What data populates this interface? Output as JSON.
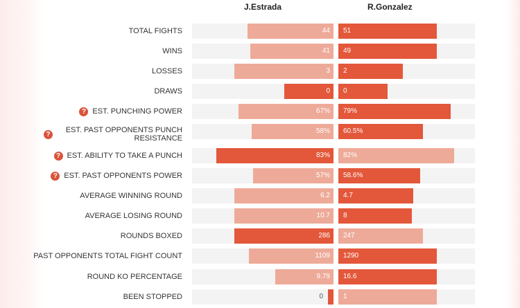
{
  "fighters": {
    "left": "J.Estrada",
    "right": "R.Gonzalez"
  },
  "colors": {
    "stronger": "#e3573a",
    "weaker": "#eeaa98",
    "track": "#f3f3f3",
    "icon": "#d9533a"
  },
  "help_icon_glyph": "?",
  "stats": [
    {
      "label": "TOTAL FIGHTS",
      "left": "44",
      "right": "51",
      "left_fill": 0.61,
      "right_fill": 0.72,
      "left_strong": false,
      "right_strong": true,
      "help": false
    },
    {
      "label": "WINS",
      "left": "41",
      "right": "49",
      "left_fill": 0.59,
      "right_fill": 0.72,
      "left_strong": false,
      "right_strong": true,
      "help": false
    },
    {
      "label": "LOSSES",
      "left": "3",
      "right": "2",
      "left_fill": 0.7,
      "right_fill": 0.47,
      "left_strong": false,
      "right_strong": true,
      "help": false
    },
    {
      "label": "DRAWS",
      "left": "0",
      "right": "0",
      "left_fill": 0.35,
      "right_fill": 0.36,
      "left_strong": true,
      "right_strong": true,
      "help": false
    },
    {
      "label": "EST. PUNCHING POWER",
      "left": "67%",
      "right": "79%",
      "left_fill": 0.67,
      "right_fill": 0.82,
      "left_strong": false,
      "right_strong": true,
      "help": true
    },
    {
      "label": "EST. PAST OPPONENTS PUNCH RESISTANCE",
      "left": "58%",
      "right": "60.5%",
      "left_fill": 0.58,
      "right_fill": 0.62,
      "left_strong": false,
      "right_strong": true,
      "help": true
    },
    {
      "label": "EST. ABILITY TO TAKE A PUNCH",
      "left": "83%",
      "right": "82%",
      "left_fill": 0.83,
      "right_fill": 0.85,
      "left_strong": true,
      "right_strong": false,
      "help": true
    },
    {
      "label": "EST. PAST OPPONENTS POWER",
      "left": "57%",
      "right": "58.6%",
      "left_fill": 0.57,
      "right_fill": 0.6,
      "left_strong": false,
      "right_strong": true,
      "help": true
    },
    {
      "label": "AVERAGE WINNING ROUND",
      "left": "6.2",
      "right": "4.7",
      "left_fill": 0.7,
      "right_fill": 0.55,
      "left_strong": false,
      "right_strong": true,
      "help": false
    },
    {
      "label": "AVERAGE LOSING ROUND",
      "left": "10.7",
      "right": "8",
      "left_fill": 0.7,
      "right_fill": 0.54,
      "left_strong": false,
      "right_strong": true,
      "help": false
    },
    {
      "label": "ROUNDS BOXED",
      "left": "286",
      "right": "247",
      "left_fill": 0.7,
      "right_fill": 0.62,
      "left_strong": true,
      "right_strong": false,
      "help": false
    },
    {
      "label": "PAST OPPONENTS TOTAL FIGHT COUNT",
      "left": "1109",
      "right": "1290",
      "left_fill": 0.6,
      "right_fill": 0.72,
      "left_strong": false,
      "right_strong": true,
      "help": false
    },
    {
      "label": "ROUND KO PERCENTAGE",
      "left": "9.79",
      "right": "16.6",
      "left_fill": 0.41,
      "right_fill": 0.72,
      "left_strong": false,
      "right_strong": true,
      "help": false
    },
    {
      "label": "BEEN STOPPED",
      "left": "0",
      "right": "1",
      "left_fill": 0.04,
      "right_fill": 0.72,
      "left_strong": true,
      "right_strong": false,
      "help": false
    }
  ]
}
